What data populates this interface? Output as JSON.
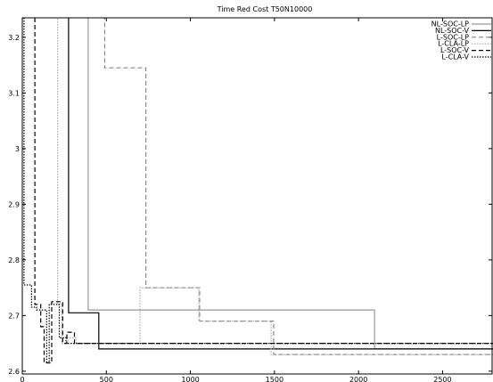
{
  "chart_data": {
    "type": "line",
    "title": "Time Red Cost T50N10000",
    "xlabel": "",
    "ylabel": "",
    "xlim": [
      0,
      2800
    ],
    "ylim": [
      2.595,
      3.235
    ],
    "grid": false,
    "legend_position": "top-right",
    "x_ticks": [
      0,
      500,
      1000,
      1500,
      2000,
      2500
    ],
    "x_tick_labels": [
      "0",
      "500",
      "1000",
      "1500",
      "2000",
      "2500"
    ],
    "y_ticks": [
      2.6,
      2.7,
      2.8,
      2.9,
      3,
      3.1,
      3.2
    ],
    "y_tick_labels": [
      "2.6",
      "2.7",
      "2.8",
      "2.9",
      "3",
      "3.1",
      "3.2"
    ],
    "series": [
      {
        "name": "NL-SOC-LP",
        "color": "#999999",
        "style": "solid",
        "points": [
          [
            378,
            3.235
          ],
          [
            392,
            3.235
          ],
          [
            392,
            2.71
          ],
          [
            2095,
            2.71
          ],
          [
            2095,
            2.64
          ],
          [
            2800,
            2.64
          ]
        ]
      },
      {
        "name": "NL-SOC-V",
        "color": "#000000",
        "style": "solid",
        "points": [
          [
            270,
            3.235
          ],
          [
            275,
            3.235
          ],
          [
            275,
            2.705
          ],
          [
            455,
            2.705
          ],
          [
            455,
            2.64
          ],
          [
            2800,
            2.64
          ]
        ]
      },
      {
        "name": "L-SOC-LP",
        "color": "#888888",
        "style": "dashed",
        "points": [
          [
            475,
            3.235
          ],
          [
            490,
            3.235
          ],
          [
            490,
            3.145
          ],
          [
            735,
            3.145
          ],
          [
            735,
            2.75
          ],
          [
            1055,
            2.75
          ],
          [
            1055,
            2.69
          ],
          [
            1495,
            2.69
          ],
          [
            1495,
            2.63
          ],
          [
            2800,
            2.63
          ]
        ]
      },
      {
        "name": "L-CLA-LP",
        "color": "#aaaaaa",
        "style": "dotted",
        "points": [
          [
            200,
            3.235
          ],
          [
            210,
            3.235
          ],
          [
            210,
            2.72
          ],
          [
            235,
            2.72
          ],
          [
            235,
            2.65
          ],
          [
            270,
            2.65
          ],
          [
            270,
            2.66
          ],
          [
            320,
            2.66
          ],
          [
            320,
            2.65
          ],
          [
            700,
            2.65
          ],
          [
            700,
            2.75
          ],
          [
            1050,
            2.75
          ],
          [
            1050,
            2.69
          ],
          [
            1480,
            2.69
          ],
          [
            1480,
            2.63
          ],
          [
            2800,
            2.63
          ]
        ]
      },
      {
        "name": "L-SOC-V",
        "color": "#000000",
        "style": "dashed",
        "points": [
          [
            75,
            3.235
          ],
          [
            75,
            2.72
          ],
          [
            110,
            2.72
          ],
          [
            110,
            2.68
          ],
          [
            130,
            2.68
          ],
          [
            130,
            2.615
          ],
          [
            175,
            2.615
          ],
          [
            175,
            2.725
          ],
          [
            240,
            2.725
          ],
          [
            240,
            2.65
          ],
          [
            265,
            2.65
          ],
          [
            265,
            2.67
          ],
          [
            310,
            2.67
          ],
          [
            310,
            2.65
          ],
          [
            2800,
            2.65
          ]
        ]
      },
      {
        "name": "L-CLA-V",
        "color": "#000000",
        "style": "dotted",
        "points": [
          [
            10,
            3.235
          ],
          [
            10,
            2.755
          ],
          [
            55,
            2.755
          ],
          [
            55,
            2.715
          ],
          [
            85,
            2.715
          ],
          [
            85,
            2.71
          ],
          [
            145,
            2.71
          ],
          [
            145,
            2.615
          ],
          [
            160,
            2.615
          ],
          [
            160,
            2.72
          ],
          [
            220,
            2.72
          ],
          [
            220,
            2.66
          ],
          [
            260,
            2.66
          ],
          [
            260,
            2.65
          ],
          [
            2800,
            2.65
          ]
        ]
      }
    ]
  }
}
